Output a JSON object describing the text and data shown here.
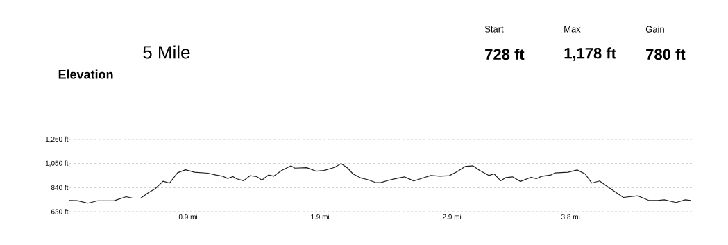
{
  "chart_data": {
    "type": "line",
    "title": "Elevation",
    "annotations": [
      "5 Mile",
      "Start",
      "728 ft",
      "Max",
      "1,178 ft",
      "Gain",
      "780 ft"
    ],
    "x": [
      0,
      0.06,
      0.14,
      0.21,
      0.34,
      0.43,
      0.48,
      0.54,
      0.6,
      0.65,
      0.71,
      0.76,
      0.82,
      0.88,
      0.95,
      1.05,
      1.11,
      1.16,
      1.2,
      1.24,
      1.27,
      1.32,
      1.37,
      1.42,
      1.46,
      1.51,
      1.55,
      1.61,
      1.68,
      1.71,
      1.8,
      1.87,
      1.93,
      2.01,
      2.06,
      2.11,
      2.15,
      2.21,
      2.26,
      2.32,
      2.36,
      2.42,
      2.48,
      2.54,
      2.58,
      2.61,
      2.68,
      2.74,
      2.81,
      2.88,
      2.94,
      3.0,
      3.06,
      3.11,
      3.18,
      3.22,
      3.27,
      3.31,
      3.36,
      3.42,
      3.5,
      3.54,
      3.58,
      3.65,
      3.68,
      3.78,
      3.85,
      3.91,
      3.96,
      4.02,
      4.09,
      4.2,
      4.31,
      4.39,
      4.46,
      4.51,
      4.6,
      4.67,
      4.71
    ],
    "values": [
      728,
      726,
      704,
      724,
      726,
      760,
      748,
      748,
      796,
      830,
      896,
      880,
      970,
      996,
      974,
      966,
      950,
      940,
      920,
      936,
      916,
      900,
      944,
      936,
      906,
      950,
      940,
      990,
      1030,
      1010,
      1014,
      984,
      990,
      1016,
      1050,
      1010,
      960,
      924,
      910,
      886,
      884,
      904,
      920,
      934,
      914,
      898,
      924,
      946,
      940,
      944,
      980,
      1024,
      1030,
      990,
      946,
      960,
      900,
      928,
      934,
      894,
      930,
      918,
      938,
      950,
      968,
      974,
      994,
      960,
      880,
      898,
      840,
      754,
      768,
      730,
      728,
      734,
      710,
      734,
      728
    ],
    "color": "#1a1a1a",
    "line_style": "solid",
    "xlim": [
      0,
      4.72
    ],
    "ylim": [
      630,
      1260
    ],
    "xticks": [
      {
        "value": 0.9,
        "label": "0.9 mi"
      },
      {
        "value": 1.9,
        "label": "1.9 mi"
      },
      {
        "value": 2.9,
        "label": "2.9 mi"
      },
      {
        "value": 3.8,
        "label": "3.8 mi"
      }
    ],
    "yticks": [
      {
        "value": 630,
        "label": "630 ft"
      },
      {
        "value": 840,
        "label": "840 ft"
      },
      {
        "value": 1050,
        "label": "1,050 ft"
      },
      {
        "value": 1260,
        "label": "1,260 ft"
      }
    ],
    "grid": "y"
  }
}
